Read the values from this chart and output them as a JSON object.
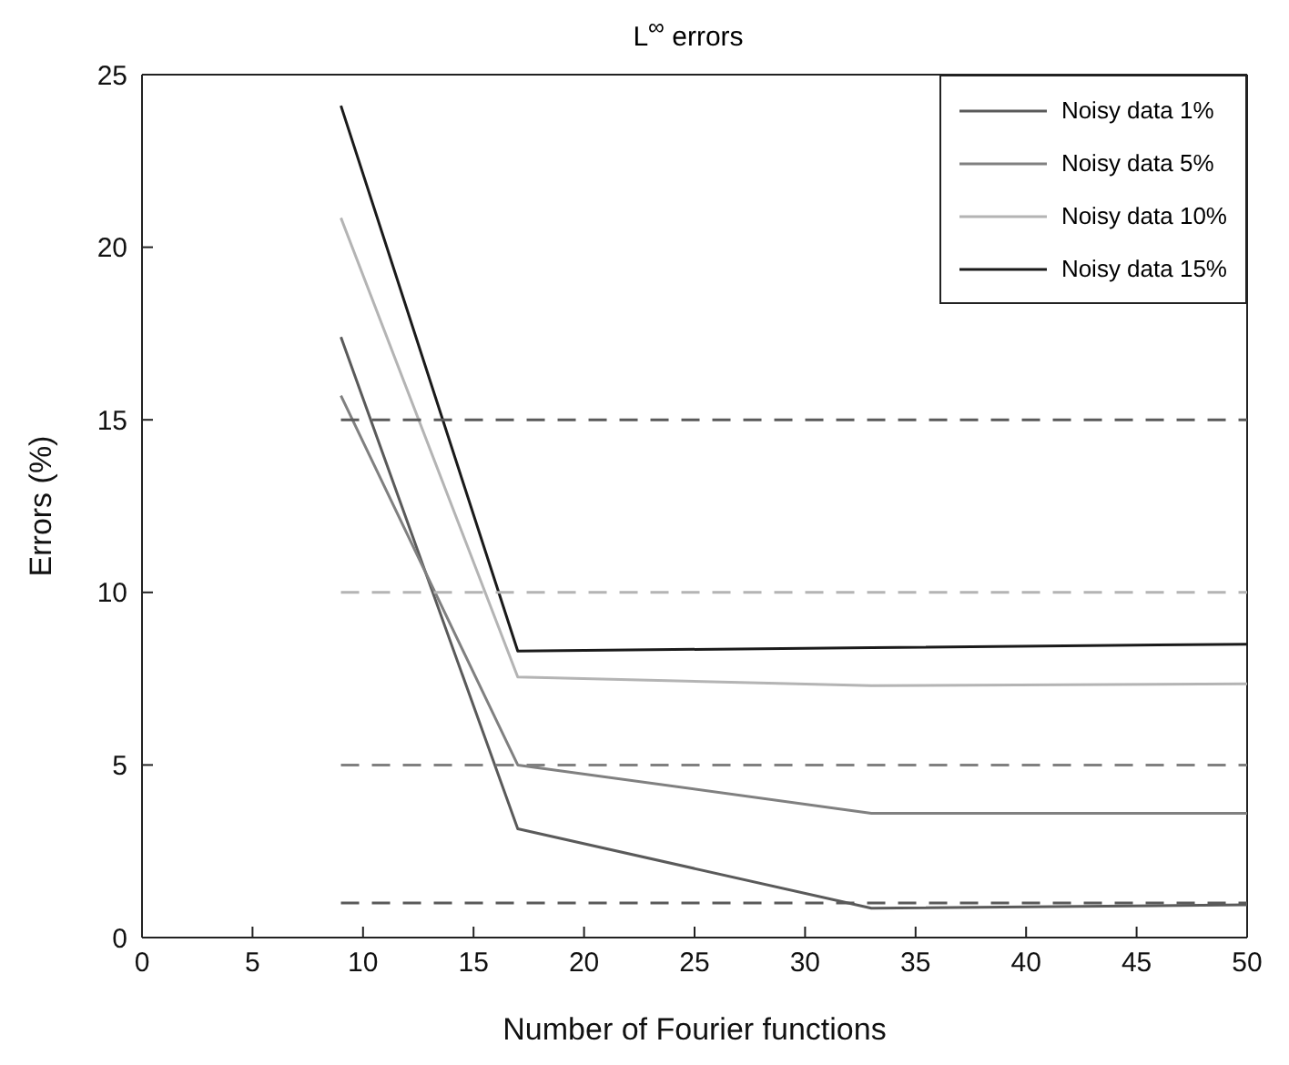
{
  "chart_data": {
    "type": "line",
    "title": "L$^{∞}$ errors",
    "xlabel": "Number of Fourier functions",
    "ylabel": "Errors (%)",
    "x": [
      9,
      17,
      33,
      50
    ],
    "series": [
      {
        "name": "Noisy data 1%",
        "color": "#5a5a5a",
        "values": [
          17.4,
          3.15,
          0.85,
          0.95
        ]
      },
      {
        "name": "Noisy data 5%",
        "color": "#808080",
        "values": [
          15.7,
          5.0,
          3.6,
          3.6
        ]
      },
      {
        "name": "Noisy data 10%",
        "color": "#b4b4b4",
        "values": [
          20.85,
          7.55,
          7.3,
          7.35
        ]
      },
      {
        "name": "Noisy data 15%",
        "color": "#1a1a1a",
        "values": [
          24.1,
          8.3,
          8.4,
          8.5
        ]
      },
      {
        "color": "#5a5a5a",
        "values": [
          1,
          1,
          1,
          1
        ],
        "line_style": "dashed"
      },
      {
        "color": "#808080",
        "values": [
          5,
          5,
          5,
          5
        ],
        "line_style": "dashed"
      },
      {
        "color": "#b4b4b4",
        "values": [
          10,
          10,
          10,
          10
        ],
        "line_style": "dashed"
      },
      {
        "color": "#5a5a5a",
        "values": [
          15,
          15,
          15,
          15
        ],
        "line_style": "dashed"
      }
    ],
    "xlim": [
      0,
      50
    ],
    "xticks": [
      0,
      5,
      10,
      15,
      20,
      25,
      30,
      35,
      40,
      45,
      50
    ],
    "ylim": [
      0,
      25
    ],
    "yticks": [
      0,
      5,
      10,
      15,
      20,
      25
    ],
    "grid": false,
    "legend": "top right",
    "marker": "none",
    "line_style": "solid"
  }
}
